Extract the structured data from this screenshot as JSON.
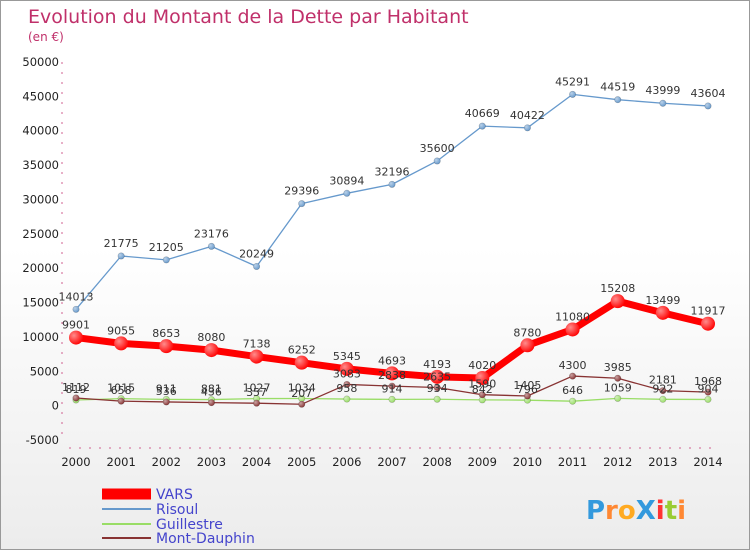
{
  "chart_data": {
    "type": "line",
    "title": "Evolution du Montant de la Dette par Habitant",
    "subtitle": "(en €)",
    "xlabel": "",
    "ylabel": "",
    "x": [
      "2000",
      "2001",
      "2002",
      "2003",
      "2004",
      "2005",
      "2006",
      "2007",
      "2008",
      "2009",
      "2010",
      "2011",
      "2012",
      "2013",
      "2014"
    ],
    "ylim": [
      -5000,
      50000
    ],
    "yticks": [
      -5000,
      0,
      5000,
      10000,
      15000,
      20000,
      25000,
      30000,
      35000,
      40000,
      45000,
      50000
    ],
    "ytick_labels": [
      "-5000",
      "0",
      "5000",
      "10000",
      "15000",
      "20000",
      "25000",
      "30000",
      "35000",
      "40000",
      "45000",
      "50000"
    ],
    "grid": false,
    "legend_position": "bottom-left",
    "series": [
      {
        "name": "VARS",
        "color": "#ff0000",
        "values": [
          9901,
          9055,
          8653,
          8080,
          7138,
          6252,
          5345,
          4693,
          4193,
          4020,
          8780,
          11080,
          15208,
          13499,
          11917
        ],
        "labels": [
          "9901",
          "9055",
          "8653",
          "8080",
          "7138",
          "6252",
          "5345",
          "4693",
          "4193",
          "4020",
          "8780",
          "11080",
          "15208",
          "13499",
          "11917"
        ]
      },
      {
        "name": "Risoul",
        "color": "#6699cc",
        "values": [
          14013,
          21775,
          21205,
          23176,
          20249,
          29396,
          30894,
          32196,
          35600,
          40669,
          40422,
          45291,
          44519,
          43999,
          43604
        ],
        "labels": [
          "14013",
          "21775",
          "21205",
          "23176",
          "20249",
          "29396",
          "30894",
          "32196",
          "35600",
          "40669",
          "40422",
          "45291",
          "44519",
          "43999",
          "43604"
        ]
      },
      {
        "name": "Guillestre",
        "color": "#99dd66",
        "values": [
          819,
          1015,
          911,
          881,
          1027,
          1034,
          958,
          914,
          934,
          842,
          796,
          646,
          1059,
          922,
          904
        ],
        "labels": [
          "819",
          "1015",
          "911",
          "881",
          "1027",
          "1034",
          "958",
          "914",
          "934",
          "842",
          "796",
          "646",
          "1059",
          "922",
          "904"
        ]
      },
      {
        "name": "Mont-Dauphin",
        "color": "#883333",
        "values": [
          1112,
          658,
          536,
          436,
          357,
          207,
          3083,
          2838,
          2635,
          1590,
          1405,
          4300,
          3985,
          2181,
          1968
        ],
        "labels": [
          "1112",
          "658",
          "536",
          "436",
          "357",
          "207",
          "3083",
          "2838",
          "2635",
          "1590",
          "1405",
          "4300",
          "3985",
          "2181",
          "1968"
        ]
      }
    ]
  },
  "watermark": {
    "text": "ProXiti"
  }
}
